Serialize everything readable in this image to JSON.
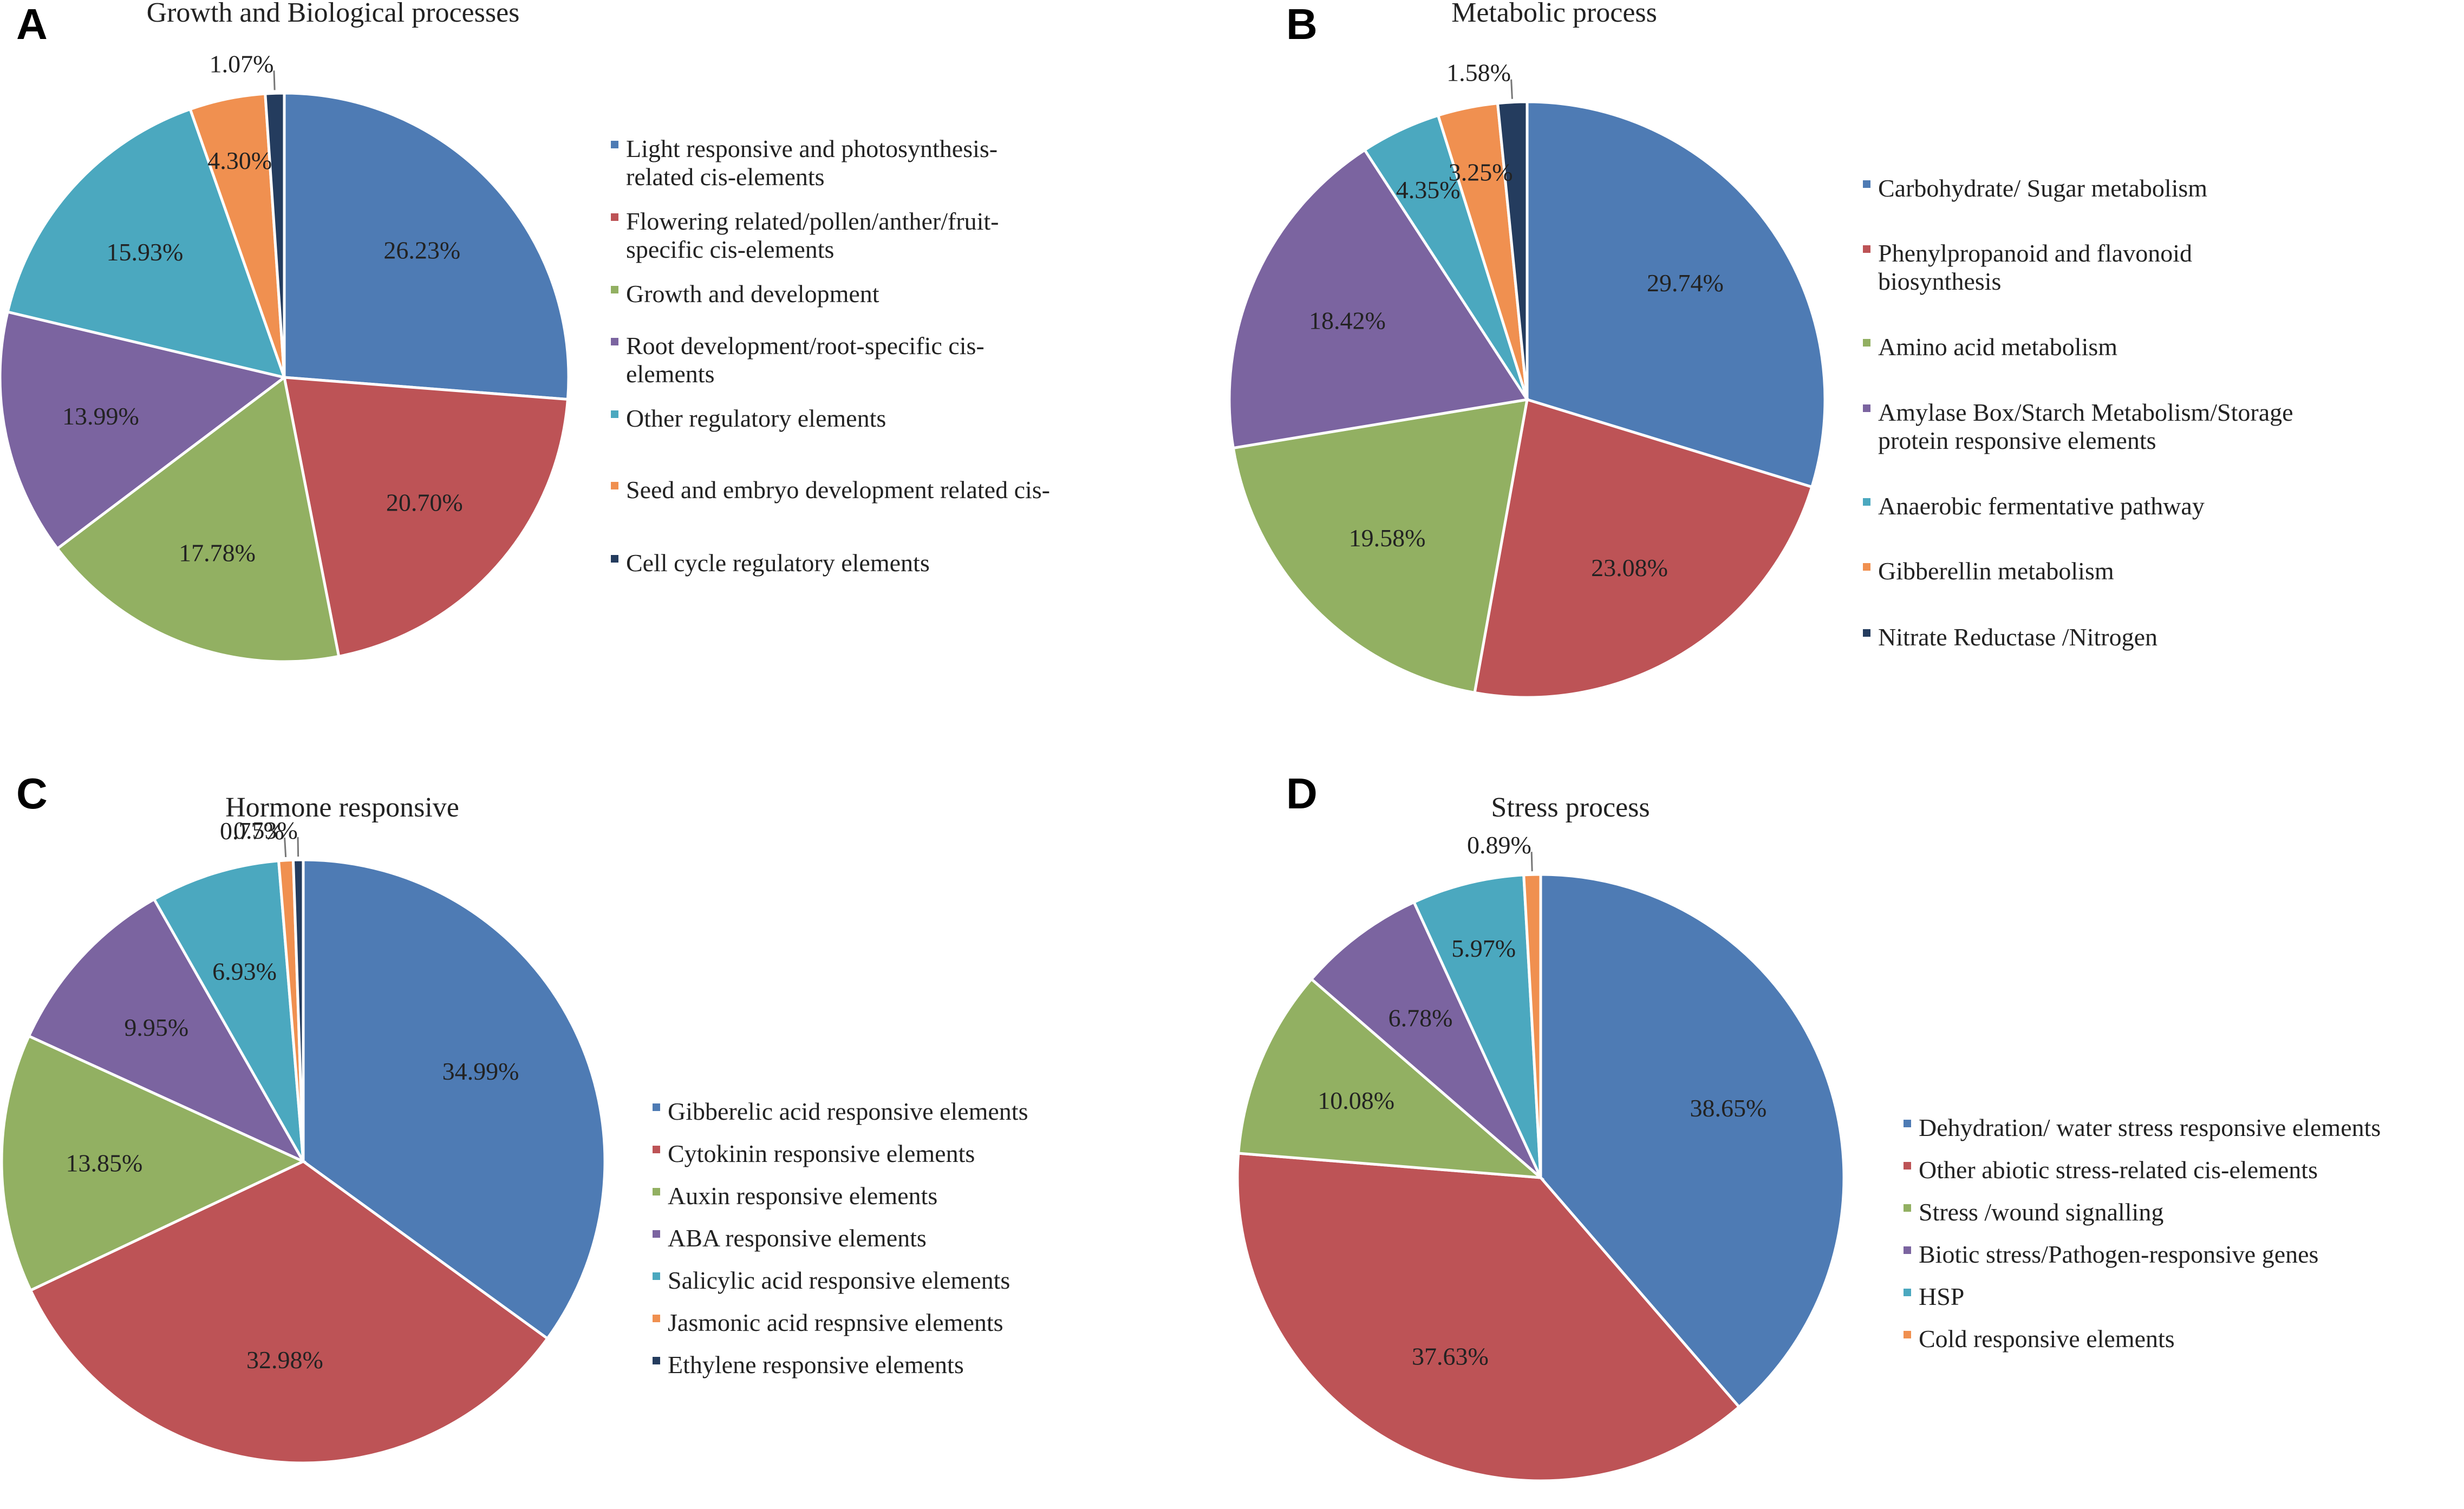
{
  "chart_data": [
    {
      "type": "pie",
      "panel_label": "A",
      "title": "Growth and Biological processes",
      "slices": [
        {
          "label": "Light responsive and photosynthesis-related  cis-elements",
          "legend_lines": [
            "Light responsive and photosynthesis-",
            "related  cis-elements"
          ],
          "value": 26.23,
          "value_label": "26.23%",
          "color": "#4E7BB4"
        },
        {
          "label": "Flowering related/pollen/anther/fruit-specific cis-elements",
          "legend_lines": [
            "Flowering related/pollen/anther/fruit-",
            "specific cis-elements"
          ],
          "value": 20.7,
          "value_label": "20.70%",
          "color": "#BD5356"
        },
        {
          "label": "Growth and development",
          "legend_lines": [
            "Growth and development"
          ],
          "value": 17.78,
          "value_label": "17.78%",
          "color": "#92B062"
        },
        {
          "label": "Root development/root-specific cis-elements",
          "legend_lines": [
            "Root development/root-specific cis-",
            "elements"
          ],
          "value": 13.99,
          "value_label": "13.99%",
          "color": "#7B64A0"
        },
        {
          "label": "Other regulatory elements",
          "legend_lines": [
            "Other regulatory elements"
          ],
          "value": 15.93,
          "value_label": "15.93%",
          "color": "#4BA8BF"
        },
        {
          "label": "Seed and embryo development related cis-",
          "legend_lines": [
            "Seed and embryo development related cis-"
          ],
          "value": 4.3,
          "value_label": "4.30%",
          "color": "#F09050"
        },
        {
          "label": "Cell cycle regulatory elements",
          "legend_lines": [
            "Cell cycle regulatory elements"
          ],
          "value": 1.07,
          "value_label": "1.07%",
          "color": "#243C5E"
        }
      ]
    },
    {
      "type": "pie",
      "panel_label": "B",
      "title": "Metabolic process",
      "slices": [
        {
          "label": "Carbohydrate/ Sugar metabolism",
          "legend_lines": [
            "Carbohydrate/ Sugar metabolism"
          ],
          "value": 29.74,
          "value_label": "29.74%",
          "color": "#4E7BB4"
        },
        {
          "label": "Phenylpropanoid and flavonoid biosynthesis",
          "legend_lines": [
            "Phenylpropanoid and flavonoid",
            "biosynthesis"
          ],
          "value": 23.08,
          "value_label": "23.08%",
          "color": "#BD5356"
        },
        {
          "label": "Amino acid metabolism",
          "legend_lines": [
            "Amino acid metabolism"
          ],
          "value": 19.58,
          "value_label": "19.58%",
          "color": "#92B062"
        },
        {
          "label": "Amylase Box/Starch Metabolism/Storage protein responsive elements",
          "legend_lines": [
            "Amylase Box/Starch Metabolism/Storage",
            "protein responsive elements"
          ],
          "value": 18.42,
          "value_label": "18.42%",
          "color": "#7B64A0"
        },
        {
          "label": "Anaerobic fermentative pathway",
          "legend_lines": [
            "Anaerobic fermentative pathway"
          ],
          "value": 4.35,
          "value_label": "4.35%",
          "color": "#4BA8BF"
        },
        {
          "label": "Gibberellin metabolism",
          "legend_lines": [
            "Gibberellin metabolism"
          ],
          "value": 3.25,
          "value_label": "3.25%",
          "color": "#F09050"
        },
        {
          "label": "Nitrate Reductase /Nitrogen",
          "legend_lines": [
            "Nitrate Reductase /Nitrogen"
          ],
          "value": 1.58,
          "value_label": "1.58%",
          "color": "#243C5E"
        }
      ]
    },
    {
      "type": "pie",
      "panel_label": "C",
      "title": "Hormone responsive",
      "slices": [
        {
          "label": "Gibberelic acid responsive elements",
          "legend_lines": [
            "Gibberelic acid responsive elements"
          ],
          "value": 34.99,
          "value_label": "34.99%",
          "color": "#4E7BB4"
        },
        {
          "label": "Cytokinin responsive elements",
          "legend_lines": [
            "Cytokinin responsive elements"
          ],
          "value": 32.98,
          "value_label": "32.98%",
          "color": "#BD5356"
        },
        {
          "label": "Auxin responsive elements",
          "legend_lines": [
            "Auxin responsive elements"
          ],
          "value": 13.85,
          "value_label": "13.85%",
          "color": "#92B062"
        },
        {
          "label": "ABA responsive elements",
          "legend_lines": [
            "ABA responsive elements"
          ],
          "value": 9.95,
          "value_label": "9.95%",
          "color": "#7B64A0"
        },
        {
          "label": "Salicylic acid responsive elements",
          "legend_lines": [
            "Salicylic acid responsive elements"
          ],
          "value": 6.93,
          "value_label": "6.93%",
          "color": "#4BA8BF"
        },
        {
          "label": "Jasmonic acid respnsive elements",
          "legend_lines": [
            "Jasmonic acid respnsive elements"
          ],
          "value": 0.77,
          "value_label": "0.77%",
          "color": "#F09050"
        },
        {
          "label": "Ethylene responsive elements",
          "legend_lines": [
            "Ethylene responsive elements"
          ],
          "value": 0.53,
          "value_label": "0.53%",
          "color": "#243C5E"
        }
      ]
    },
    {
      "type": "pie",
      "panel_label": "D",
      "title": "Stress process",
      "slices": [
        {
          "label": "Dehydration/ water stress responsive elements",
          "legend_lines": [
            "Dehydration/ water stress responsive elements"
          ],
          "value": 38.65,
          "value_label": "38.65%",
          "color": "#4E7BB4"
        },
        {
          "label": "Other abiotic stress-related cis-elements",
          "legend_lines": [
            "Other abiotic stress-related cis-elements"
          ],
          "value": 37.63,
          "value_label": "37.63%",
          "color": "#BD5356"
        },
        {
          "label": "Stress /wound signalling",
          "legend_lines": [
            "Stress /wound signalling"
          ],
          "value": 10.08,
          "value_label": "10.08%",
          "color": "#92B062"
        },
        {
          "label": "Biotic stress/Pathogen-responsive genes",
          "legend_lines": [
            "Biotic stress/Pathogen-responsive genes"
          ],
          "value": 6.78,
          "value_label": "6.78%",
          "color": "#7B64A0"
        },
        {
          "label": "HSP",
          "legend_lines": [
            "HSP"
          ],
          "value": 5.97,
          "value_label": "5.97%",
          "color": "#4BA8BF"
        },
        {
          "label": "Cold responsive elements",
          "legend_lines": [
            "Cold responsive elements"
          ],
          "value": 0.89,
          "value_label": "0.89%",
          "color": "#F09050"
        }
      ]
    }
  ]
}
